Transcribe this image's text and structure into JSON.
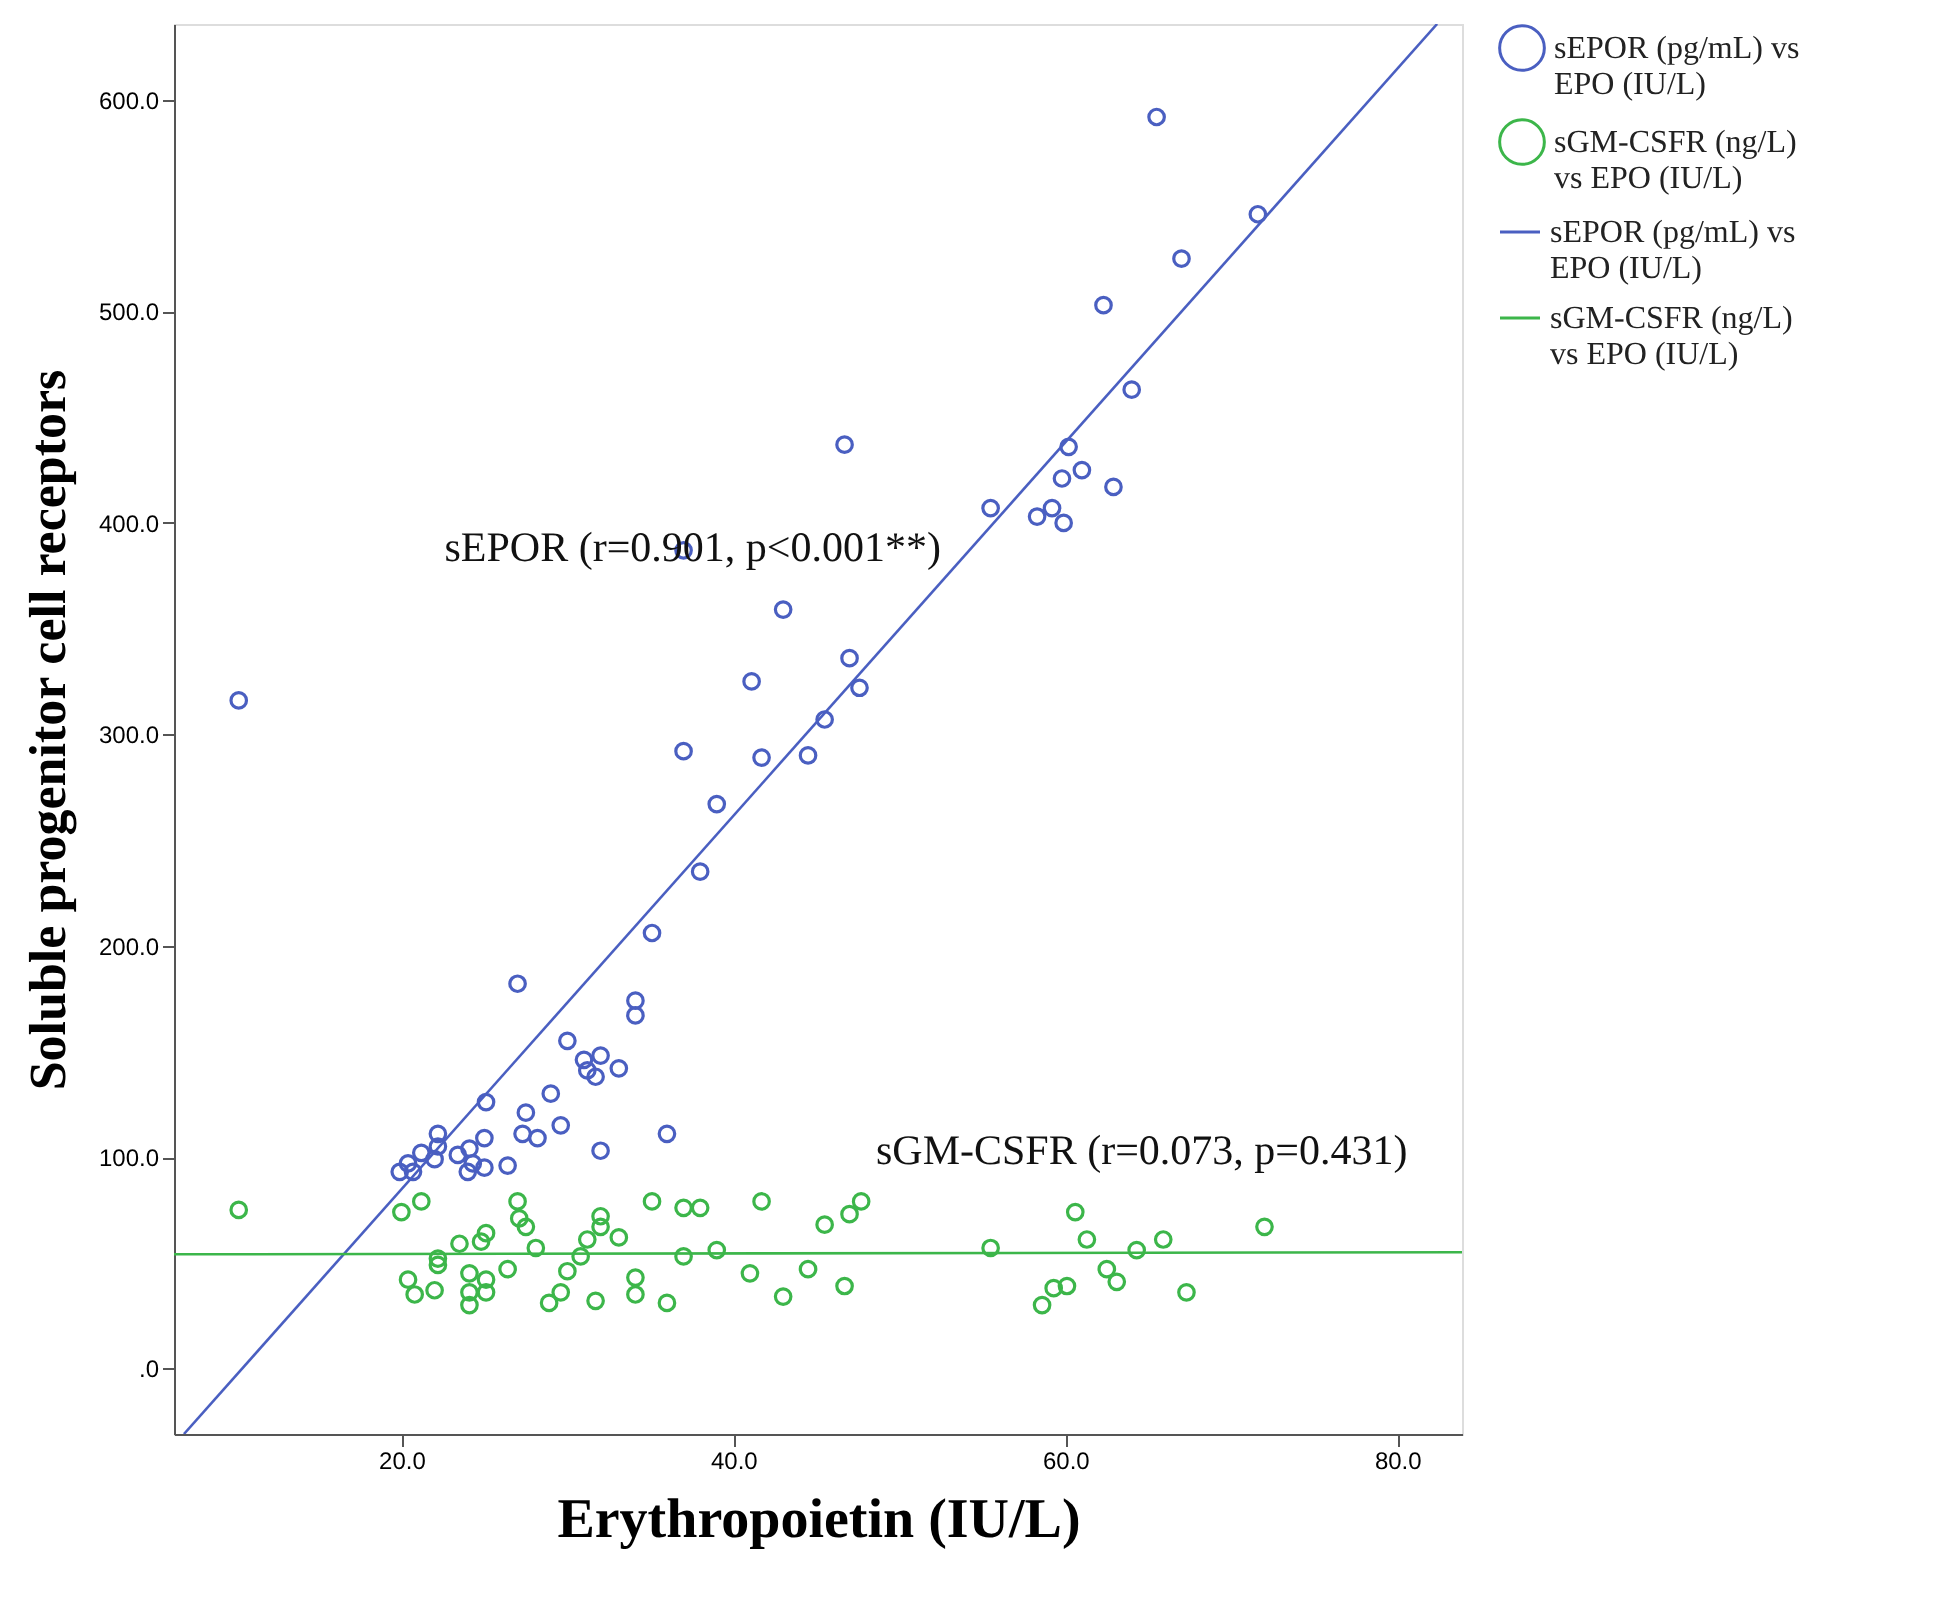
{
  "chart_data": {
    "type": "scatter",
    "xlabel": "Erythropoietin (IU/L)",
    "ylabel": "Soluble progenitor cell receptors",
    "xlim": [
      6.3,
      83.9
    ],
    "ylim": [
      -31,
      636
    ],
    "xticks": [
      {
        "value": 20,
        "label": "20.0"
      },
      {
        "value": 40,
        "label": "40.0"
      },
      {
        "value": 60,
        "label": "60.0"
      },
      {
        "value": 80,
        "label": "80.0"
      }
    ],
    "yticks": [
      {
        "value": 0,
        "label": ".0"
      },
      {
        "value": 100,
        "label": "100.0"
      },
      {
        "value": 200,
        "label": "200.0"
      },
      {
        "value": 300,
        "label": "300.0"
      },
      {
        "value": 400,
        "label": "400.0"
      },
      {
        "value": 500,
        "label": "500.0"
      },
      {
        "value": 600,
        "label": "600.0"
      }
    ],
    "grid": false,
    "legend": "right",
    "marker": "circle",
    "annotations": [
      "sEPOR (r=0.901, p<0.001**)",
      "sGM-CSFR (r=0.073, p=0.431)"
    ],
    "series": [
      {
        "name": "sEPOR (pg/mL) vs EPO (IU/L)",
        "color": "#4a5fc1",
        "x": [
          10.2,
          46.7,
          55.5,
          37.0,
          43.0,
          41.1,
          47.0,
          47.6,
          45.5,
          37.0,
          41.7,
          44.5,
          39.0,
          65.5,
          71.6,
          67.0,
          62.3,
          64.0,
          60.2,
          61.0,
          59.8,
          62.9,
          58.3,
          59.2,
          59.9,
          38.0,
          35.1,
          27.0,
          34.1,
          34.1,
          30.0,
          31.0,
          32.0,
          31.2,
          31.7,
          33.1,
          25.1,
          29.0,
          27.5,
          29.6,
          27.3,
          28.2,
          32.0,
          36.0,
          22.2,
          22.2,
          22.0,
          21.2,
          20.4,
          19.9,
          20.7,
          23.4,
          24.1,
          25.0,
          24.3,
          24.0,
          25.0,
          26.4
        ],
        "values": [
          316,
          437,
          407,
          387,
          359,
          325,
          336,
          322,
          307,
          292,
          289,
          290,
          267,
          592,
          546,
          525,
          503,
          463,
          436,
          425,
          421,
          417,
          403,
          407,
          400,
          235,
          206,
          182,
          174,
          167,
          155,
          146,
          148,
          141,
          138,
          142,
          126,
          130,
          121,
          115,
          111,
          109,
          103,
          111,
          111,
          105,
          99,
          102,
          97,
          93,
          93,
          101,
          104,
          109,
          97,
          93,
          95,
          96
        ]
      },
      {
        "name": "sGM-CSFR (ng/L) vs EPO (IU/L)",
        "color": "#3cb64a",
        "x": [
          10.2,
          20.0,
          21.2,
          20.4,
          20.8,
          22.0,
          22.2,
          22.2,
          23.5,
          24.1,
          24.1,
          24.1,
          25.1,
          25.1,
          24.8,
          25.1,
          26.4,
          27.0,
          27.1,
          27.5,
          28.1,
          28.9,
          29.6,
          30.0,
          30.8,
          31.2,
          31.7,
          32.0,
          32.0,
          33.1,
          34.1,
          34.1,
          35.1,
          36.0,
          37.0,
          38.0,
          37.0,
          39.0,
          41.0,
          41.7,
          43.0,
          44.5,
          45.5,
          46.7,
          47.0,
          47.7,
          55.5,
          60.6,
          61.3,
          58.6,
          59.3,
          60.1,
          62.5,
          63.1,
          64.3,
          65.9,
          67.3,
          72.0
        ],
        "values": [
          75,
          74,
          79,
          42,
          35,
          37,
          52,
          49,
          59,
          45,
          36,
          30,
          36,
          42,
          60,
          64,
          47,
          79,
          71,
          67,
          57,
          31,
          36,
          46,
          53,
          61,
          32,
          72,
          67,
          62,
          43,
          35,
          79,
          31,
          76,
          76,
          53,
          56,
          45,
          79,
          34,
          47,
          68,
          39,
          73,
          79,
          57,
          74,
          61,
          30,
          38,
          39,
          47,
          41,
          56,
          61,
          36,
          67
        ]
      },
      {
        "name": "sEPOR (pg/mL) vs EPO (IU/L)",
        "type": "line",
        "marker": "none",
        "color": "#4a5fc1",
        "x": [
          6.9,
          82.4
        ],
        "values": [
          -31,
          636
        ]
      },
      {
        "name": "sGM-CSFR (ng/L) vs EPO (IU/L)",
        "type": "line",
        "marker": "none",
        "color": "#3cb64a",
        "x": [
          6.3,
          83.9
        ],
        "values": [
          54,
          55
        ]
      }
    ]
  }
}
